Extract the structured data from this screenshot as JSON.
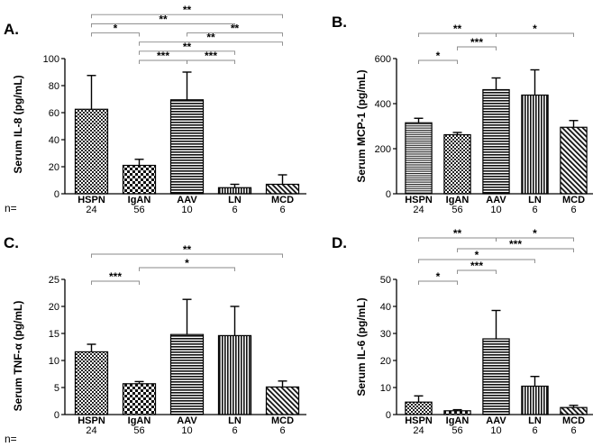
{
  "panels": [
    {
      "letter": "A.",
      "chart_data": {
        "type": "bar",
        "ylabel": "Serum IL-8 (pg/mL)",
        "ylim": [
          0,
          100
        ],
        "yticks": [
          0,
          20,
          40,
          60,
          80,
          100
        ],
        "categories": [
          "HSPN",
          "IgAN",
          "AAV",
          "LN",
          "MCD"
        ],
        "values": [
          62.5,
          21,
          69.5,
          4.5,
          7
        ],
        "errors": [
          25,
          4.5,
          20.5,
          2.5,
          7
        ],
        "patterns": [
          "checker",
          "checker-dense",
          "horizontal",
          "vertical",
          "diagonal"
        ],
        "n_label": "n=",
        "n": [
          "24",
          "56",
          "10",
          "6",
          "6"
        ],
        "brackets": [
          {
            "from": "HSPN",
            "to": "MCD",
            "label": "**",
            "level": 6
          },
          {
            "from": "HSPN",
            "to": "LN",
            "label": "**",
            "level": 5
          },
          {
            "from": "HSPN",
            "to": "IgAN",
            "label": "*",
            "level": 4
          },
          {
            "from": "AAV",
            "to": "MCD",
            "label": "**",
            "level": 4
          },
          {
            "from": "IgAN",
            "to": "MCD",
            "label": "**",
            "level": 3
          },
          {
            "from": "IgAN",
            "to": "LN",
            "label": "**",
            "level": 2
          },
          {
            "from": "IgAN",
            "to": "AAV",
            "label": "***",
            "level": 1
          },
          {
            "from": "AAV",
            "to": "LN",
            "label": "***",
            "level": 1
          }
        ]
      }
    },
    {
      "letter": "B.",
      "chart_data": {
        "type": "bar",
        "ylabel": "Serum MCP-1 (pg/mL)",
        "ylim": [
          0,
          600
        ],
        "yticks": [
          0,
          200,
          400,
          600
        ],
        "categories": [
          "HSPN",
          "IgAN",
          "AAV",
          "LN",
          "MCD"
        ],
        "values": [
          315,
          262,
          462,
          438,
          295
        ],
        "errors": [
          20,
          10,
          52,
          112,
          30
        ],
        "patterns": [
          "horizontal-fine",
          "checker",
          "horizontal",
          "vertical",
          "diagonal"
        ],
        "n_label": "",
        "n": [
          "24",
          "56",
          "10",
          "6",
          "6"
        ],
        "brackets": [
          {
            "from": "HSPN",
            "to": "AAV",
            "label": "**",
            "level": 3
          },
          {
            "from": "AAV",
            "to": "MCD",
            "label": "*",
            "level": 3
          },
          {
            "from": "IgAN",
            "to": "AAV",
            "label": "***",
            "level": 2
          },
          {
            "from": "HSPN",
            "to": "IgAN",
            "label": "*",
            "level": 1
          }
        ]
      }
    },
    {
      "letter": "C.",
      "chart_data": {
        "type": "bar",
        "ylabel": "Serum TNF-α (pg/mL)",
        "ylim": [
          0,
          25
        ],
        "yticks": [
          0,
          5,
          10,
          15,
          20,
          25
        ],
        "categories": [
          "HSPN",
          "IgAN",
          "AAV",
          "LN",
          "MCD"
        ],
        "values": [
          11.6,
          5.7,
          14.8,
          14.6,
          5.1
        ],
        "errors": [
          1.4,
          0.4,
          6.5,
          5.4,
          1.1
        ],
        "patterns": [
          "checker",
          "checker-dense",
          "horizontal",
          "vertical",
          "diagonal"
        ],
        "n_label": "n=",
        "n": [
          "24",
          "56",
          "10",
          "6",
          "6"
        ],
        "brackets": [
          {
            "from": "HSPN",
            "to": "MCD",
            "label": "**",
            "level": 3
          },
          {
            "from": "IgAN",
            "to": "LN",
            "label": "*",
            "level": 2
          },
          {
            "from": "HSPN",
            "to": "IgAN",
            "label": "***",
            "level": 1
          }
        ]
      }
    },
    {
      "letter": "D.",
      "chart_data": {
        "type": "bar",
        "ylabel": "Serum IL-6 (pg/mL)",
        "ylim": [
          0,
          50
        ],
        "yticks": [
          0,
          10,
          20,
          30,
          40,
          50
        ],
        "categories": [
          "HSPN",
          "IgAN",
          "AAV",
          "LN",
          "MCD"
        ],
        "values": [
          4.6,
          1.4,
          28,
          10.5,
          2.6
        ],
        "errors": [
          2.3,
          0.4,
          10.5,
          3.6,
          0.8
        ],
        "patterns": [
          "checker",
          "checker-dense",
          "horizontal",
          "vertical",
          "diagonal"
        ],
        "n_label": "",
        "n": [
          "24",
          "56",
          "10",
          "6",
          "6"
        ],
        "brackets": [
          {
            "from": "HSPN",
            "to": "AAV",
            "label": "**",
            "level": 5
          },
          {
            "from": "AAV",
            "to": "MCD",
            "label": "*",
            "level": 5
          },
          {
            "from": "IgAN",
            "to": "MCD",
            "label": "***",
            "level": 4
          },
          {
            "from": "HSPN",
            "to": "LN",
            "label": "*",
            "level": 3
          },
          {
            "from": "IgAN",
            "to": "AAV",
            "label": "***",
            "level": 2
          },
          {
            "from": "HSPN",
            "to": "IgAN",
            "label": "*",
            "level": 1
          }
        ]
      }
    }
  ]
}
